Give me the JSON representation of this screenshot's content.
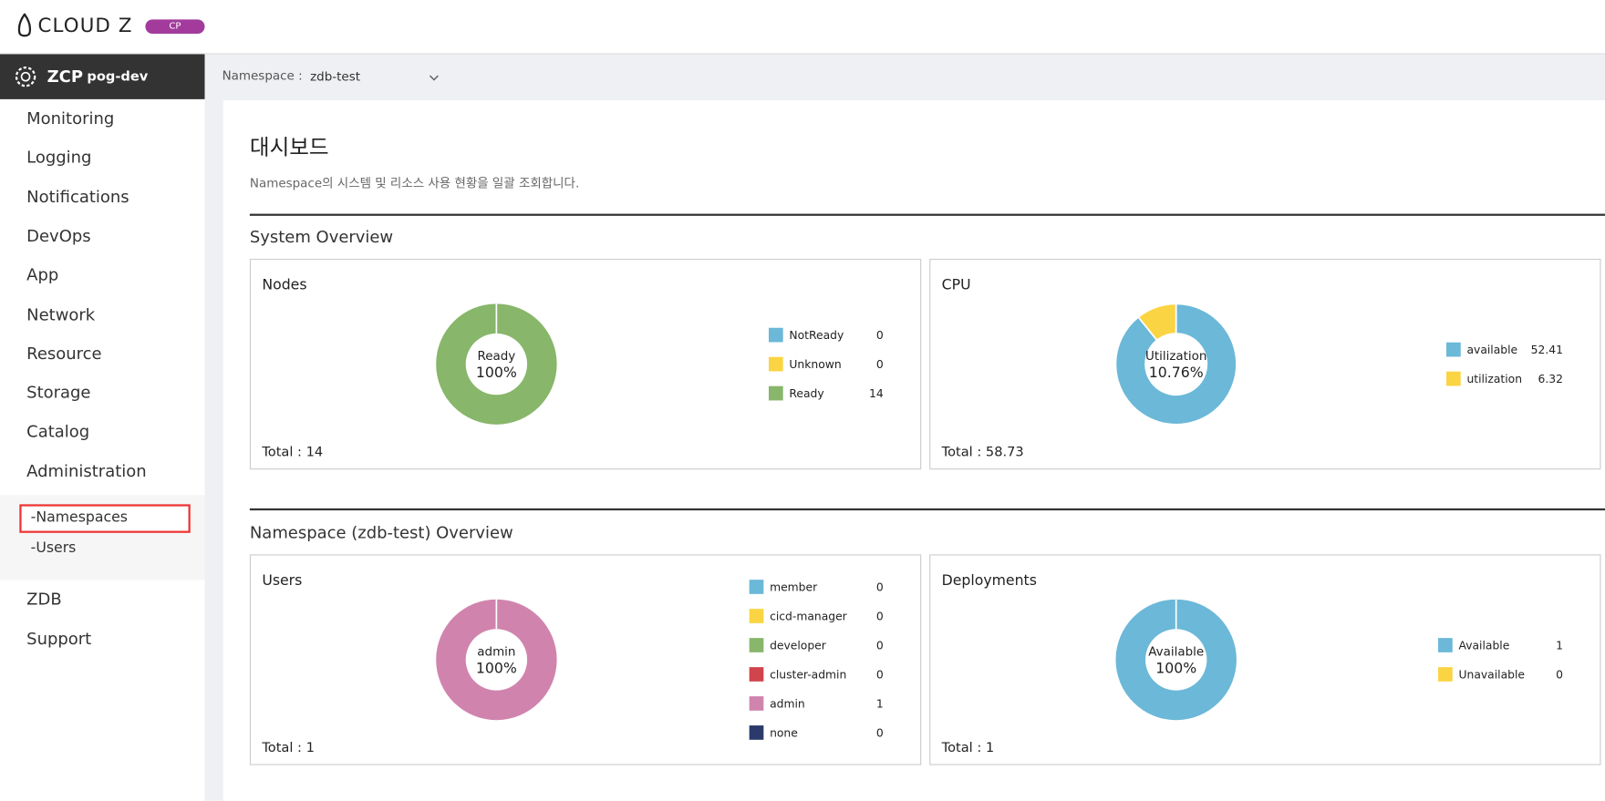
{
  "header": {
    "logo": "CLOUD Z",
    "badge": "CP"
  },
  "sidebar": {
    "product": "ZCP",
    "cluster": "pog-dev",
    "menu": [
      "Monitoring",
      "Logging",
      "Notifications",
      "DevOps",
      "App",
      "Network",
      "Resource",
      "Storage",
      "Catalog",
      "Administration"
    ],
    "submenu": [
      "-Namespaces",
      "-Users"
    ],
    "menu_after": [
      "ZDB",
      "Support"
    ]
  },
  "namespace_bar": {
    "label": "Namespace :",
    "value": "zdb-test"
  },
  "page": {
    "title": "대시보드",
    "description": "Namespace의 시스템 및 리소스 사용 현황을 일괄 조회합니다.",
    "sections": [
      "System Overview",
      "Namespace (zdb-test) Overview"
    ]
  },
  "chart_data": [
    {
      "type": "pie",
      "title": "Nodes",
      "center_text": [
        "Ready",
        "100%"
      ],
      "categories": [
        "NotReady",
        "Unknown",
        "Ready"
      ],
      "values": [
        0,
        0,
        14
      ],
      "colors": [
        "#6bb8d8",
        "#fbd443",
        "#88b66a"
      ],
      "total_label": "Total :",
      "total": 14
    },
    {
      "type": "pie",
      "title": "CPU",
      "center_text": [
        "Utilization",
        "10.76%"
      ],
      "categories": [
        "available",
        "utilization"
      ],
      "values": [
        52.41,
        6.32
      ],
      "colors": [
        "#6bb8d8",
        "#fbd443"
      ],
      "total_label": "Total :",
      "total": 58.73
    },
    {
      "type": "pie",
      "title": "Users",
      "center_text": [
        "admin",
        "100%"
      ],
      "categories": [
        "member",
        "cicd-manager",
        "developer",
        "cluster-admin",
        "admin",
        "none"
      ],
      "values": [
        0,
        0,
        0,
        0,
        1,
        0
      ],
      "colors": [
        "#6bb8d8",
        "#fbd443",
        "#88b66a",
        "#d0444c",
        "#d084ad",
        "#2b3a6b"
      ],
      "total_label": "Total :",
      "total": 1
    },
    {
      "type": "pie",
      "title": "Deployments",
      "center_text": [
        "Available",
        "100%"
      ],
      "categories": [
        "Available",
        "Unavailable"
      ],
      "values": [
        1,
        0
      ],
      "colors": [
        "#6bb8d8",
        "#fbd443"
      ],
      "total_label": "Total :",
      "total": 1
    }
  ]
}
